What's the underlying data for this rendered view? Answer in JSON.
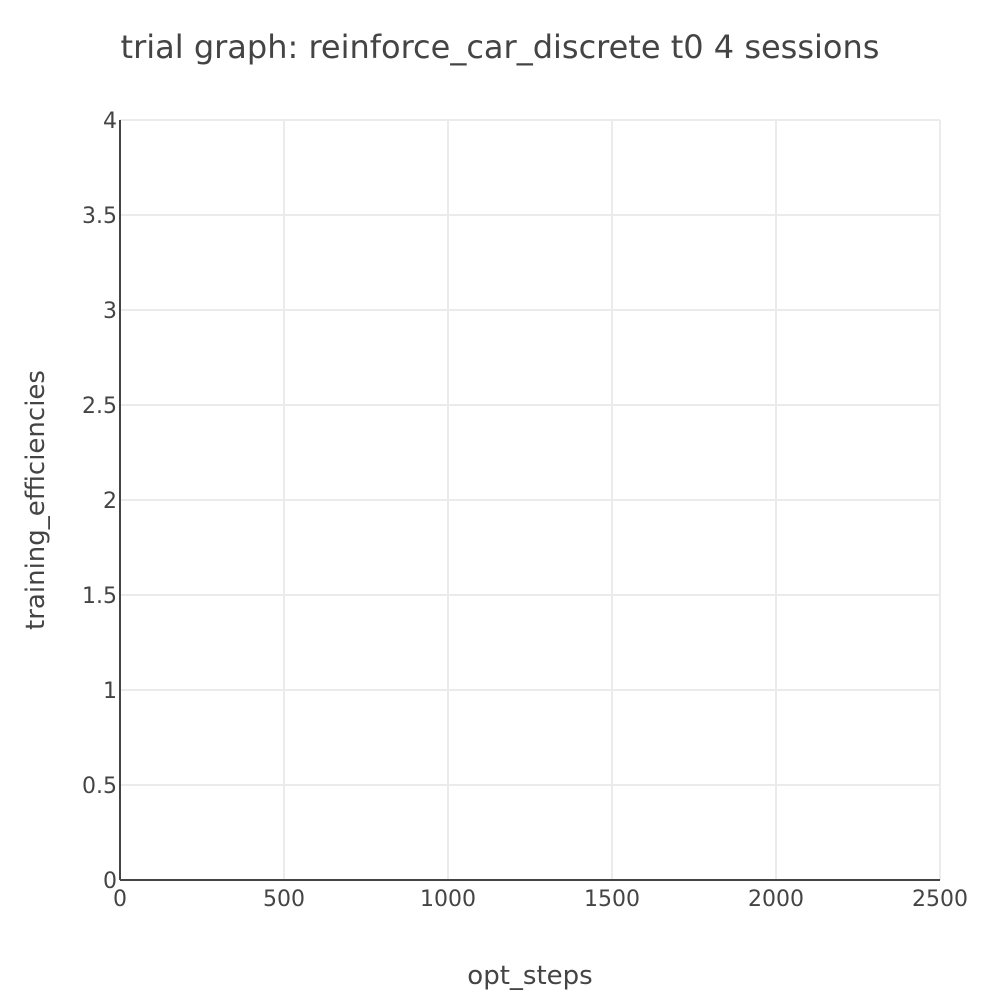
{
  "chart_data": {
    "type": "line",
    "title": "trial graph: reinforce_car_discrete t0 4 sessions",
    "xlabel": "opt_steps",
    "ylabel": "training_efficiencies",
    "xlim": [
      0,
      2500
    ],
    "ylim": [
      0,
      4
    ],
    "x_ticks": [
      0,
      500,
      1000,
      1500,
      2000,
      2500
    ],
    "x_tick_labels": [
      "0",
      "500",
      "1000",
      "1500",
      "2000",
      "2500"
    ],
    "y_ticks": [
      0,
      0.5,
      1,
      1.5,
      2,
      2.5,
      3,
      3.5,
      4
    ],
    "y_tick_labels": [
      "0",
      "0.5",
      "1",
      "1.5",
      "2",
      "2.5",
      "3",
      "3.5",
      "4"
    ],
    "grid": true,
    "series": []
  }
}
